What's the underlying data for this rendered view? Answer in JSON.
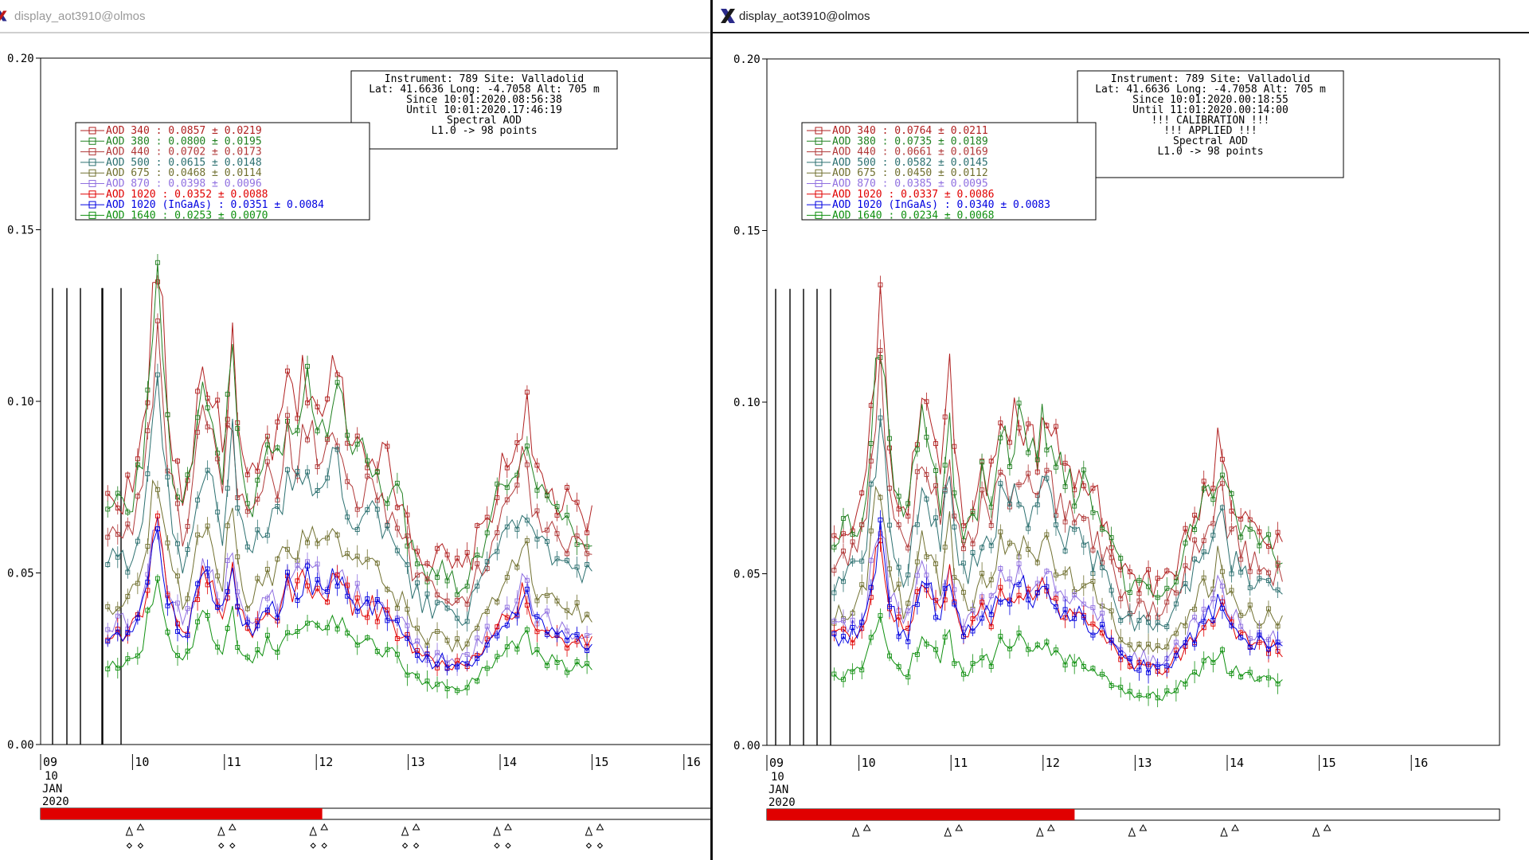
{
  "colors": {
    "aod340": "#b02020",
    "aod380": "#208020",
    "aod440": "#b03838",
    "aod500": "#2c7070",
    "aod675": "#707030",
    "aod870": "#9070e0",
    "aod1020": "#e00000",
    "aod1020ingaas": "#0000e0",
    "aod1640": "#109010",
    "day_bar": "#e00000"
  },
  "windows": [
    {
      "title": "display_aot3910@olmos",
      "y_ticks": [
        "0.20",
        "0.15",
        "0.10",
        "0.05",
        "0.00"
      ],
      "info_lines": [
        "Instrument: 789 Site: Valladolid",
        "Lat: 41.6636 Long: -4.7058 Alt: 705 m",
        "Since 10:01:2020.08:56:38",
        "Until 10:01:2020.17:46:19",
        "Spectral AOD",
        "L1.0 -> 98 points"
      ],
      "legend": [
        {
          "label": "AOD 340   : 0.0857 ± 0.0219",
          "color": "#b02020"
        },
        {
          "label": "AOD 380   : 0.0800 ± 0.0195",
          "color": "#208020"
        },
        {
          "label": "AOD 440   : 0.0702 ± 0.0173",
          "color": "#b03838"
        },
        {
          "label": "AOD 500   : 0.0615 ± 0.0148",
          "color": "#2c7070"
        },
        {
          "label": "AOD 675   : 0.0468 ± 0.0114",
          "color": "#707030"
        },
        {
          "label": "AOD 870   : 0.0398 ± 0.0096",
          "color": "#9070e0"
        },
        {
          "label": "AOD 1020   : 0.0352 ± 0.0088",
          "color": "#e00000"
        },
        {
          "label": "AOD 1020 (InGaAs)  : 0.0351 ± 0.0084",
          "color": "#0000e0"
        },
        {
          "label": "AOD 1640   : 0.0253 ± 0.0070",
          "color": "#109010"
        }
      ],
      "x_ticks": [
        "09",
        "10",
        "11",
        "12",
        "13",
        "14",
        "15",
        "16"
      ],
      "date_label": [
        "10",
        "JAN",
        "2020"
      ],
      "day_progress": 0.42
    },
    {
      "title": "display_aot3910@olmos",
      "y_ticks": [
        "0.20",
        "0.15",
        "0.10",
        "0.05",
        "0.00"
      ],
      "info_lines": [
        "Instrument: 789 Site: Valladolid",
        "Lat: 41.6636 Long: -4.7058 Alt: 705 m",
        "Since 10:01:2020.00:18:55",
        "Until 11:01:2020.00:14:00",
        "!!! CALIBRATION !!!",
        "!!!   APPLIED   !!!",
        "Spectral AOD",
        "L1.0 -> 98 points"
      ],
      "legend": [
        {
          "label": "AOD 340   : 0.0764 ± 0.0211",
          "color": "#b02020"
        },
        {
          "label": "AOD 380   : 0.0735 ± 0.0189",
          "color": "#208020"
        },
        {
          "label": "AOD 440   : 0.0661 ± 0.0169",
          "color": "#b03838"
        },
        {
          "label": "AOD 500   : 0.0582 ± 0.0145",
          "color": "#2c7070"
        },
        {
          "label": "AOD 675   : 0.0450 ± 0.0112",
          "color": "#707030"
        },
        {
          "label": "AOD 870   : 0.0385 ± 0.0095",
          "color": "#9070e0"
        },
        {
          "label": "AOD 1020   : 0.0337 ± 0.0086",
          "color": "#e00000"
        },
        {
          "label": "AOD 1020 (InGaAs)  : 0.0340 ± 0.0083",
          "color": "#0000e0"
        },
        {
          "label": "AOD 1640   : 0.0234 ± 0.0068",
          "color": "#109010"
        }
      ],
      "x_ticks": [
        "09",
        "10",
        "11",
        "12",
        "13",
        "14",
        "15",
        "16"
      ],
      "date_label": [
        "10",
        "JAN",
        "2020"
      ],
      "day_progress": 0.42
    }
  ]
}
